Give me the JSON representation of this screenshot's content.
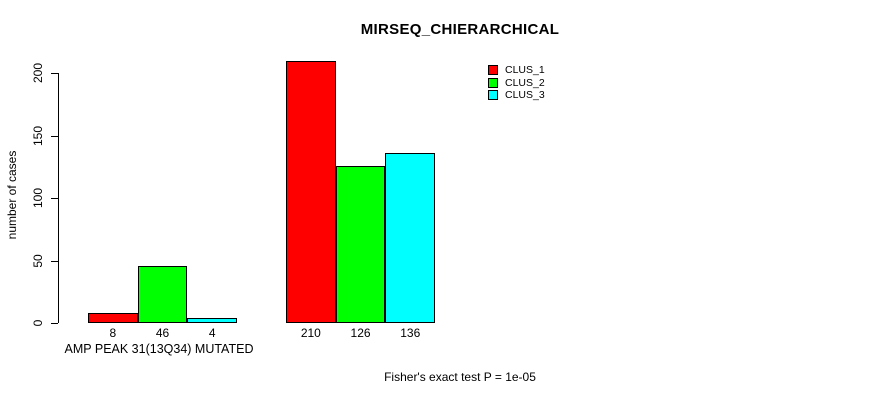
{
  "chart_data": {
    "type": "bar",
    "title": "MIRSEQ_CHIERARCHICAL",
    "ylabel": "number of cases",
    "xlabel": "",
    "yticks": [
      0,
      50,
      100,
      150,
      200
    ],
    "ylim": [
      0,
      210
    ],
    "grid": false,
    "legend_position": "top-right",
    "categories": [
      "AMP PEAK 31(13Q34) MUTATED",
      ""
    ],
    "series": [
      {
        "name": "CLUS_1",
        "color": "#ff0000",
        "values": [
          8,
          210
        ]
      },
      {
        "name": "CLUS_2",
        "color": "#00ff00",
        "values": [
          46,
          126
        ]
      },
      {
        "name": "CLUS_3",
        "color": "#00ffff",
        "values": [
          4,
          136
        ]
      }
    ],
    "annotation": "Fisher's exact test P = 1e-05"
  }
}
